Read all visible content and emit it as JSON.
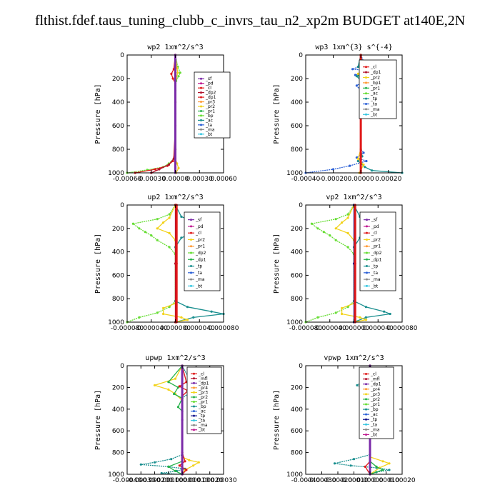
{
  "title": "flthist.fdef.taus_tuning_clubb_c_invrs_tau_n2_xp2m  BUDGET at140E,2N",
  "colors": {
    "purple": "#7a2aa8",
    "dkred": "#b0102a",
    "red": "#e01818",
    "orange": "#ff9933",
    "yellow": "#f2d21a",
    "green": "#26b24a",
    "lime": "#66dd33",
    "teal": "#1a8f8f",
    "blue": "#2a5fd6",
    "navy": "#14148c",
    "cyan": "#35c6e0",
    "gray": "#8a8a8a",
    "magenta": "#c01890"
  },
  "chart_data": [
    {
      "type": "line",
      "title": "wp2   1xm^2/s^3",
      "ylabel": "Pressure [hPa]",
      "ylim": [
        1000,
        0
      ],
      "xlim": [
        -0.0006,
        0.0006
      ],
      "xticks": [
        -0.0006,
        -0.0003,
        0.0,
        0.0003,
        0.0006
      ],
      "xtick_labels": [
        "-0.00060",
        "-0.00030",
        "0.00000",
        "0.00030",
        "0.00060"
      ],
      "yticks": [
        0,
        200,
        400,
        600,
        800,
        1000
      ],
      "legend": [
        "_sf",
        "_pd",
        "_cl",
        "_dp2",
        "_dp1",
        "_pr3",
        "_pr2",
        "_pr1",
        "_bp",
        "_ac",
        "_ta",
        "_ma",
        "_bt"
      ],
      "legend_colors": [
        "purple",
        "magenta",
        "red",
        "dkred",
        "red",
        "orange",
        "yellow",
        "green",
        "lime",
        "teal",
        "blue",
        "gray",
        "cyan"
      ],
      "series": [
        {
          "color": "lime",
          "x": [
            0,
            3e-05,
            6e-05,
            4e-05,
            1e-05,
            0,
            0,
            0,
            -2e-05,
            -8e-05,
            -0.00015,
            -0.00035,
            -0.0006
          ],
          "y": [
            0,
            100,
            150,
            180,
            220,
            300,
            500,
            800,
            880,
            920,
            950,
            975,
            1000
          ]
        },
        {
          "color": "yellow",
          "x": [
            0,
            2e-05,
            3e-05,
            1e-05,
            0,
            0,
            0,
            0,
            2e-05,
            4e-05,
            1e-05
          ],
          "y": [
            0,
            110,
            150,
            200,
            260,
            400,
            800,
            880,
            920,
            960,
            1000
          ]
        },
        {
          "color": "red",
          "x": [
            0,
            -2e-05,
            -5e-05,
            -3e-05,
            0,
            0,
            0,
            -3e-05,
            -0.0001,
            -0.00025,
            -0.0005
          ],
          "y": [
            0,
            120,
            160,
            200,
            240,
            400,
            800,
            900,
            940,
            970,
            1000
          ]
        },
        {
          "color": "dkred",
          "x": [
            0,
            0,
            -2e-05,
            -8e-05,
            -0.0002,
            -0.0003
          ],
          "y": [
            0,
            600,
            880,
            930,
            970,
            1000
          ]
        },
        {
          "color": "purple",
          "x": [
            0,
            0,
            0,
            0
          ],
          "y": [
            0,
            400,
            800,
            1000
          ]
        }
      ]
    },
    {
      "type": "line",
      "title": "wp3   1xm^{3} s^{-4}",
      "ylabel": "Pressure [hPa]",
      "ylim": [
        1000,
        0
      ],
      "xlim": [
        -0.0004,
        0.0003
      ],
      "xticks": [
        -0.0004,
        -0.0002,
        0.0,
        0.0002
      ],
      "xtick_labels": [
        "-0.00040",
        "-0.00020",
        "0.00000",
        "0.00020"
      ],
      "yticks": [
        0,
        200,
        400,
        600,
        800,
        1000
      ],
      "legend": [
        "_cl",
        "_dp1",
        "_pr2",
        "_bp1",
        "_pr1",
        "_ac",
        "_tp",
        "_ta",
        "_ma",
        "_bt"
      ],
      "legend_colors": [
        "red",
        "dkred",
        "yellow",
        "orange",
        "green",
        "lime",
        "teal",
        "blue",
        "gray",
        "cyan"
      ],
      "series": [
        {
          "color": "blue",
          "x": [
            0,
            3e-05,
            -6e-05,
            0.00012,
            -4e-05,
            5e-05,
            -3e-05,
            1e-05,
            0,
            0,
            2e-05,
            -3e-05,
            4e-05,
            -8e-05,
            -0.0002,
            -0.0004
          ],
          "y": [
            0,
            80,
            120,
            140,
            170,
            200,
            260,
            320,
            400,
            800,
            830,
            870,
            900,
            940,
            970,
            1000
          ]
        },
        {
          "color": "teal",
          "x": [
            0,
            -2e-05,
            4e-05,
            -3e-05,
            2e-05,
            0,
            0,
            1e-05,
            -2e-05,
            3e-05,
            8e-05,
            0.0003
          ],
          "y": [
            0,
            100,
            140,
            180,
            240,
            300,
            800,
            860,
            900,
            950,
            980,
            1000
          ]
        },
        {
          "color": "yellow",
          "x": [
            0,
            2e-05,
            -2e-05,
            3e-05,
            0,
            0,
            -2e-05,
            2e-05,
            -1e-05
          ],
          "y": [
            0,
            120,
            160,
            200,
            280,
            800,
            880,
            930,
            1000
          ]
        },
        {
          "color": "green",
          "x": [
            0,
            2e-05,
            -1e-05,
            2e-05,
            0,
            0
          ],
          "y": [
            0,
            130,
            180,
            230,
            320,
            1000
          ]
        },
        {
          "color": "red",
          "x": [
            0,
            0,
            0
          ],
          "y": [
            0,
            500,
            1000
          ]
        }
      ]
    },
    {
      "type": "line",
      "title": "up2   1xm^2/s^3",
      "ylabel": "Pressure [hPa]",
      "ylim": [
        1000,
        0
      ],
      "xlim": [
        -8e-05,
        8e-05
      ],
      "xticks": [
        -8e-05,
        -4e-05,
        0.0,
        4e-05,
        8e-05
      ],
      "xtick_labels": [
        "-0.000080",
        "-0.000040",
        "0.000000",
        "0.000040",
        "0.000080"
      ],
      "yticks": [
        0,
        200,
        400,
        600,
        800,
        1000
      ],
      "legend": [
        "_sf",
        "_pd",
        "_cl",
        "_pr2",
        "_pr1",
        "_dp2",
        "_dp1",
        "_tp",
        "_ta",
        "_ma",
        "_bt"
      ],
      "legend_colors": [
        "purple",
        "magenta",
        "red",
        "yellow",
        "orange",
        "lime",
        "green",
        "teal",
        "blue",
        "gray",
        "cyan"
      ],
      "series": [
        {
          "color": "lime",
          "x": [
            0,
            -1e-05,
            -3e-05,
            -7e-05,
            -6e-05,
            -5e-05,
            -4e-05,
            -3e-05,
            -1e-05,
            0,
            0,
            -1e-05,
            -3e-05,
            -6e-05,
            -8e-05
          ],
          "y": [
            0,
            80,
            120,
            160,
            200,
            230,
            260,
            300,
            360,
            420,
            820,
            870,
            920,
            960,
            1000
          ]
        },
        {
          "color": "teal",
          "x": [
            0,
            1e-05,
            3e-05,
            7e-05,
            4e-05,
            1e-05,
            0,
            0,
            2e-05,
            6e-05,
            8e-05,
            3e-05,
            0
          ],
          "y": [
            0,
            100,
            140,
            190,
            220,
            280,
            360,
            820,
            870,
            910,
            930,
            960,
            1000
          ]
        },
        {
          "color": "yellow",
          "x": [
            0,
            -1e-05,
            -2e-05,
            -3e-05,
            -1e-05,
            0,
            0,
            -2e-05,
            -2e-05,
            1e-05,
            2e-05,
            0
          ],
          "y": [
            0,
            110,
            150,
            200,
            240,
            300,
            840,
            880,
            930,
            960,
            980,
            1000
          ]
        },
        {
          "color": "dkred",
          "x": [
            0,
            0,
            0
          ],
          "y": [
            0,
            500,
            1000
          ]
        },
        {
          "color": "red",
          "x": [
            2e-06,
            2e-06,
            2e-06
          ],
          "y": [
            0,
            500,
            1000
          ]
        }
      ]
    },
    {
      "type": "line",
      "title": "vp2   1xm^2/s^3",
      "ylabel": "Pressure [hPa]",
      "ylim": [
        1000,
        0
      ],
      "xlim": [
        -8e-05,
        8e-05
      ],
      "xticks": [
        -8e-05,
        -4e-05,
        0.0,
        4e-05,
        8e-05
      ],
      "xtick_labels": [
        "-0.000080",
        "-0.000040",
        "0.000000",
        "0.000040",
        "0.000080"
      ],
      "yticks": [
        0,
        200,
        400,
        600,
        800,
        1000
      ],
      "legend": [
        "_sf",
        "_pd",
        "_cl",
        "_pr2",
        "_pr1",
        "_dp2",
        "_dp1",
        "_tp",
        "_ta",
        "_ma",
        "_bt"
      ],
      "legend_colors": [
        "purple",
        "magenta",
        "red",
        "yellow",
        "orange",
        "lime",
        "green",
        "teal",
        "blue",
        "gray",
        "cyan"
      ],
      "series": [
        {
          "color": "lime",
          "x": [
            0,
            -1e-05,
            -3e-05,
            -7e-05,
            -6e-05,
            -5e-05,
            -4e-05,
            -3e-05,
            -1e-05,
            0,
            0,
            -1e-05,
            -3e-05,
            -6e-05,
            -8e-05
          ],
          "y": [
            0,
            80,
            120,
            160,
            200,
            230,
            260,
            300,
            360,
            420,
            820,
            870,
            920,
            960,
            1000
          ]
        },
        {
          "color": "teal",
          "x": [
            0,
            1e-05,
            3e-05,
            4e-05,
            2e-05,
            1e-05,
            0,
            0,
            2e-05,
            5e-05,
            6e-05,
            2e-05,
            0
          ],
          "y": [
            0,
            100,
            140,
            190,
            220,
            280,
            360,
            820,
            870,
            910,
            930,
            960,
            1000
          ]
        },
        {
          "color": "yellow",
          "x": [
            0,
            -1e-05,
            -2e-05,
            -3e-05,
            -1e-05,
            0,
            0,
            -2e-05,
            -2e-05,
            1e-05,
            2e-05,
            0
          ],
          "y": [
            0,
            110,
            150,
            200,
            240,
            300,
            840,
            880,
            930,
            960,
            980,
            1000
          ]
        },
        {
          "color": "navy",
          "x": [
            0,
            0,
            0
          ],
          "y": [
            0,
            500,
            1000
          ]
        },
        {
          "color": "red",
          "x": [
            2e-06,
            2e-06,
            2e-06
          ],
          "y": [
            0,
            500,
            1000
          ]
        }
      ]
    },
    {
      "type": "line",
      "title": "upwp   1xm^2/s^3",
      "ylabel": "Pressure [hPa]",
      "ylim": [
        1000,
        0
      ],
      "xlim": [
        -0.0004,
        0.0003
      ],
      "xticks": [
        -0.0004,
        -0.0003,
        -0.0002,
        -0.0001,
        0.0,
        0.0001,
        0.0002,
        0.0003
      ],
      "xtick_labels": [
        "-0.00040",
        "-0.00030",
        "-0.00020",
        "-0.00010",
        "0.00000",
        "0.00010",
        "0.00020",
        "0.00030"
      ],
      "yticks": [
        0,
        200,
        400,
        600,
        800,
        1000
      ],
      "legend": [
        "_cl",
        "_mfl",
        "_dp1",
        "_pr4",
        "_pr3",
        "_pr2",
        "_pr1",
        "_bp",
        "_ac",
        "_tp",
        "_ta",
        "_ma",
        "_bt"
      ],
      "legend_colors": [
        "red",
        "dkred",
        "purple",
        "orange",
        "yellow",
        "green",
        "lime",
        "teal",
        "blue",
        "navy",
        "cyan",
        "gray",
        "magenta"
      ],
      "series": [
        {
          "color": "teal",
          "x": [
            0,
            5e-05,
            0.0001,
            0.0002,
            6e-05,
            0,
            0,
            -8e-05,
            -0.0002,
            -0.0003,
            -0.0001,
            2e-05,
            -4e-05,
            -0.00015,
            0
          ],
          "y": [
            0,
            120,
            160,
            200,
            240,
            300,
            820,
            860,
            890,
            910,
            930,
            950,
            970,
            990,
            1000
          ]
        },
        {
          "color": "yellow",
          "x": [
            0,
            -5e-05,
            -0.0002,
            -0.0001,
            -5e-05,
            0,
            0,
            5e-05,
            0.00012,
            8e-05,
            2e-05,
            0
          ],
          "y": [
            0,
            120,
            180,
            220,
            260,
            320,
            840,
            870,
            890,
            920,
            960,
            1000
          ]
        },
        {
          "color": "green",
          "x": [
            0,
            -0.0001,
            -3e-05,
            -6e-05,
            0,
            -3e-05,
            0,
            0,
            -0.0001,
            -5e-05,
            0
          ],
          "y": [
            0,
            150,
            200,
            260,
            300,
            380,
            420,
            880,
            930,
            970,
            1000
          ]
        },
        {
          "color": "red",
          "x": [
            0,
            3e-05,
            -2e-05,
            4e-05,
            0,
            0,
            2e-05,
            -2e-05,
            3e-05,
            0
          ],
          "y": [
            0,
            150,
            190,
            230,
            280,
            800,
            880,
            920,
            960,
            1000
          ]
        },
        {
          "color": "purple",
          "x": [
            0,
            0,
            0
          ],
          "y": [
            0,
            500,
            1000
          ]
        }
      ]
    },
    {
      "type": "line",
      "title": "vpwp   1xm^2/s^3",
      "ylabel": "Pressure [hPa]",
      "ylim": [
        1000,
        0
      ],
      "xlim": [
        -0.0004,
        0.0002
      ],
      "xticks": [
        -0.0004,
        -0.0003,
        -0.0002,
        -0.0001,
        0.0,
        0.0001,
        0.0002
      ],
      "xtick_labels": [
        "-0.00040",
        "-0.00030",
        "-0.00020",
        "-0.00010",
        "0.00000",
        "0.00010",
        "0.00020"
      ],
      "yticks": [
        0,
        200,
        400,
        600,
        800,
        1000
      ],
      "legend": [
        "_cl",
        "_mfl",
        "_dp1",
        "_pr4",
        "_pr3",
        "_pr2",
        "_pr1",
        "_bp",
        "_ac",
        "_tp",
        "_ta",
        "_ma",
        "_bt"
      ],
      "legend_colors": [
        "red",
        "dkred",
        "purple",
        "orange",
        "yellow",
        "green",
        "lime",
        "teal",
        "blue",
        "navy",
        "cyan",
        "gray",
        "magenta"
      ],
      "series": [
        {
          "color": "teal",
          "x": [
            0,
            -4e-05,
            -8e-05,
            -2e-05,
            0,
            0,
            -0.0001,
            -0.00022,
            -0.00012,
            4e-05,
            0.00012,
            4e-05,
            0
          ],
          "y": [
            0,
            140,
            180,
            220,
            300,
            820,
            860,
            900,
            920,
            940,
            960,
            980,
            1000
          ]
        },
        {
          "color": "yellow",
          "x": [
            0,
            -3e-05,
            -6e-05,
            -2e-05,
            0,
            0,
            8e-05,
            0.00012,
            6e-05,
            0
          ],
          "y": [
            0,
            140,
            190,
            240,
            300,
            840,
            880,
            900,
            940,
            1000
          ]
        },
        {
          "color": "green",
          "x": [
            0,
            -4e-05,
            0,
            -2e-05,
            0,
            0,
            4e-05,
            8e-05,
            0
          ],
          "y": [
            0,
            160,
            220,
            280,
            340,
            880,
            930,
            960,
            1000
          ]
        },
        {
          "color": "red",
          "x": [
            0,
            -2e-05,
            1e-05,
            0,
            0,
            -3e-05,
            0
          ],
          "y": [
            0,
            150,
            200,
            260,
            880,
            930,
            1000
          ]
        },
        {
          "color": "purple",
          "x": [
            0,
            0,
            0
          ],
          "y": [
            0,
            500,
            1000
          ]
        }
      ]
    }
  ]
}
